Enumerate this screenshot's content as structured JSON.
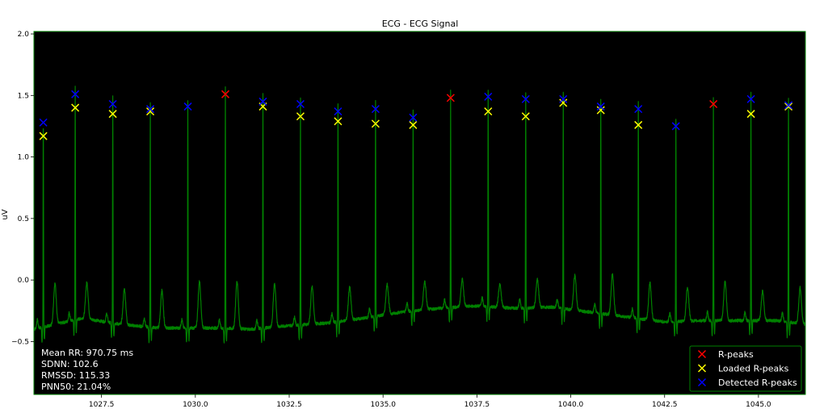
{
  "chart_data": {
    "type": "line",
    "title": "ECG - ECG Signal",
    "xlabel": "",
    "ylabel": "uV",
    "xlim": [
      1025.7,
      1046.25
    ],
    "ylim": [
      -0.93,
      2.02
    ],
    "grid": false,
    "background": "#000000",
    "line_color": "#008000",
    "x_ticks": [
      1027.5,
      1030.0,
      1032.5,
      1035.0,
      1037.5,
      1040.0,
      1042.5,
      1045.0
    ],
    "x_tick_labels": [
      "1027.5",
      "1030.0",
      "1032.5",
      "1035.0",
      "1037.5",
      "1040.0",
      "1042.5",
      "1045.0"
    ],
    "y_ticks": [
      -0.5,
      0.0,
      0.5,
      1.0,
      1.5,
      2.0
    ],
    "y_tick_labels": [
      "−0.5",
      "0.0",
      "0.5",
      "1.0",
      "1.5",
      "2.0"
    ],
    "signal": {
      "name": "ECG",
      "baseline": [
        [
          1025.7,
          -0.4
        ],
        [
          1027.0,
          -0.31
        ],
        [
          1028.0,
          -0.36
        ],
        [
          1029.0,
          -0.39
        ],
        [
          1030.5,
          -0.39
        ],
        [
          1031.5,
          -0.4
        ],
        [
          1032.5,
          -0.37
        ],
        [
          1033.5,
          -0.35
        ],
        [
          1034.5,
          -0.31
        ],
        [
          1035.5,
          -0.26
        ],
        [
          1036.5,
          -0.23
        ],
        [
          1037.5,
          -0.21
        ],
        [
          1038.5,
          -0.23
        ],
        [
          1039.5,
          -0.22
        ],
        [
          1040.5,
          -0.26
        ],
        [
          1041.5,
          -0.3
        ],
        [
          1042.5,
          -0.34
        ],
        [
          1043.5,
          -0.33
        ],
        [
          1044.5,
          -0.33
        ],
        [
          1045.5,
          -0.33
        ],
        [
          1046.25,
          -0.36
        ]
      ],
      "t_wave_peaks": [
        -0.05,
        -0.03,
        -0.06,
        -0.08,
        -0.01,
        -0.01,
        -0.04,
        -0.06,
        -0.07,
        -0.05,
        -0.02,
        0.0,
        -0.03,
        0.0,
        0.05,
        0.06,
        -0.01,
        -0.06,
        -0.01,
        -0.09,
        -0.05,
        -0.03,
        -0.05,
        -0.01,
        0.0
      ]
    },
    "series": [
      {
        "name": "R-peaks",
        "marker": "x",
        "color": "#ff0000",
        "points": [
          [
            1030.8,
            1.51
          ],
          [
            1036.8,
            1.48
          ],
          [
            1043.8,
            1.43
          ]
        ]
      },
      {
        "name": "Loaded R-peaks",
        "marker": "x",
        "color": "#ffff00",
        "points": [
          [
            1025.95,
            1.17
          ],
          [
            1026.8,
            1.4
          ],
          [
            1027.8,
            1.35
          ],
          [
            1028.8,
            1.37
          ],
          [
            1031.8,
            1.41
          ],
          [
            1032.8,
            1.33
          ],
          [
            1033.8,
            1.29
          ],
          [
            1034.8,
            1.27
          ],
          [
            1035.8,
            1.26
          ],
          [
            1037.8,
            1.37
          ],
          [
            1038.8,
            1.33
          ],
          [
            1039.8,
            1.44
          ],
          [
            1040.8,
            1.38
          ],
          [
            1041.8,
            1.26
          ],
          [
            1044.8,
            1.35
          ],
          [
            1045.8,
            1.41
          ]
        ]
      },
      {
        "name": "Detected R-peaks",
        "marker": "x",
        "color": "#0000ff",
        "points": [
          [
            1025.95,
            1.28
          ],
          [
            1026.8,
            1.51
          ],
          [
            1027.8,
            1.43
          ],
          [
            1028.8,
            1.39
          ],
          [
            1029.8,
            1.41
          ],
          [
            1031.8,
            1.45
          ],
          [
            1032.8,
            1.43
          ],
          [
            1033.8,
            1.37
          ],
          [
            1034.8,
            1.39
          ],
          [
            1035.8,
            1.32
          ],
          [
            1037.8,
            1.49
          ],
          [
            1038.8,
            1.47
          ],
          [
            1039.8,
            1.47
          ],
          [
            1040.8,
            1.41
          ],
          [
            1041.8,
            1.39
          ],
          [
            1042.8,
            1.25
          ],
          [
            1044.8,
            1.47
          ],
          [
            1045.8,
            1.42
          ]
        ]
      }
    ],
    "stats": [
      "Mean RR: 970.75 ms",
      "SDNN: 102.6",
      "RMSSD: 115.33",
      "PNN50: 21.04%"
    ],
    "legend": {
      "placement": "lower-right",
      "entries": [
        {
          "label": "R-peaks",
          "color": "#ff0000"
        },
        {
          "label": "Loaded R-peaks",
          "color": "#ffff00"
        },
        {
          "label": "Detected R-peaks",
          "color": "#0000ff"
        }
      ]
    }
  }
}
